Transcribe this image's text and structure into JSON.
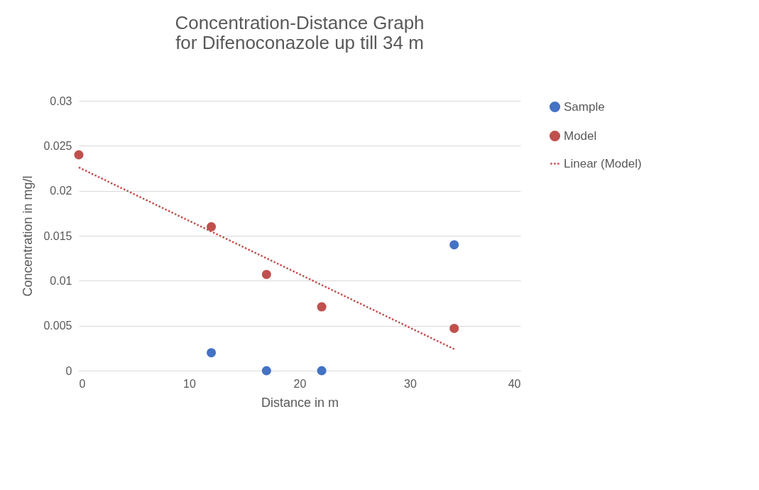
{
  "chart_data": {
    "type": "scatter",
    "title": "Concentration-Distance Graph\nfor  Difenoconazole up till 34 m",
    "xlabel": "Distance in m",
    "ylabel": "Concentration in mg/l",
    "series": [
      {
        "name": "Sample",
        "color": "#4472c4",
        "x": [
          12,
          17,
          22,
          34
        ],
        "values": [
          0.002,
          0,
          0,
          0.014
        ]
      },
      {
        "name": "Model",
        "color": "#c0504d",
        "x": [
          0,
          12,
          17,
          22,
          34
        ],
        "values": [
          0.024,
          0.016,
          0.0107,
          0.0071,
          0.0047
        ]
      },
      {
        "name": "Linear (Model)",
        "type": "line",
        "line_style": "dotted",
        "marker": "none",
        "color": "#c0504d",
        "x": [
          0,
          34
        ],
        "values": [
          0.0226,
          0.0024
        ]
      }
    ],
    "xlim": [
      0,
      40
    ],
    "xticks": [
      0,
      10,
      20,
      30,
      40
    ],
    "ylim": [
      0,
      0.03
    ],
    "yticks": [
      0,
      0.005,
      0.01,
      0.015,
      0.02,
      0.025,
      0.03
    ],
    "grid": "y",
    "legend": "right",
    "marker": "circle"
  }
}
